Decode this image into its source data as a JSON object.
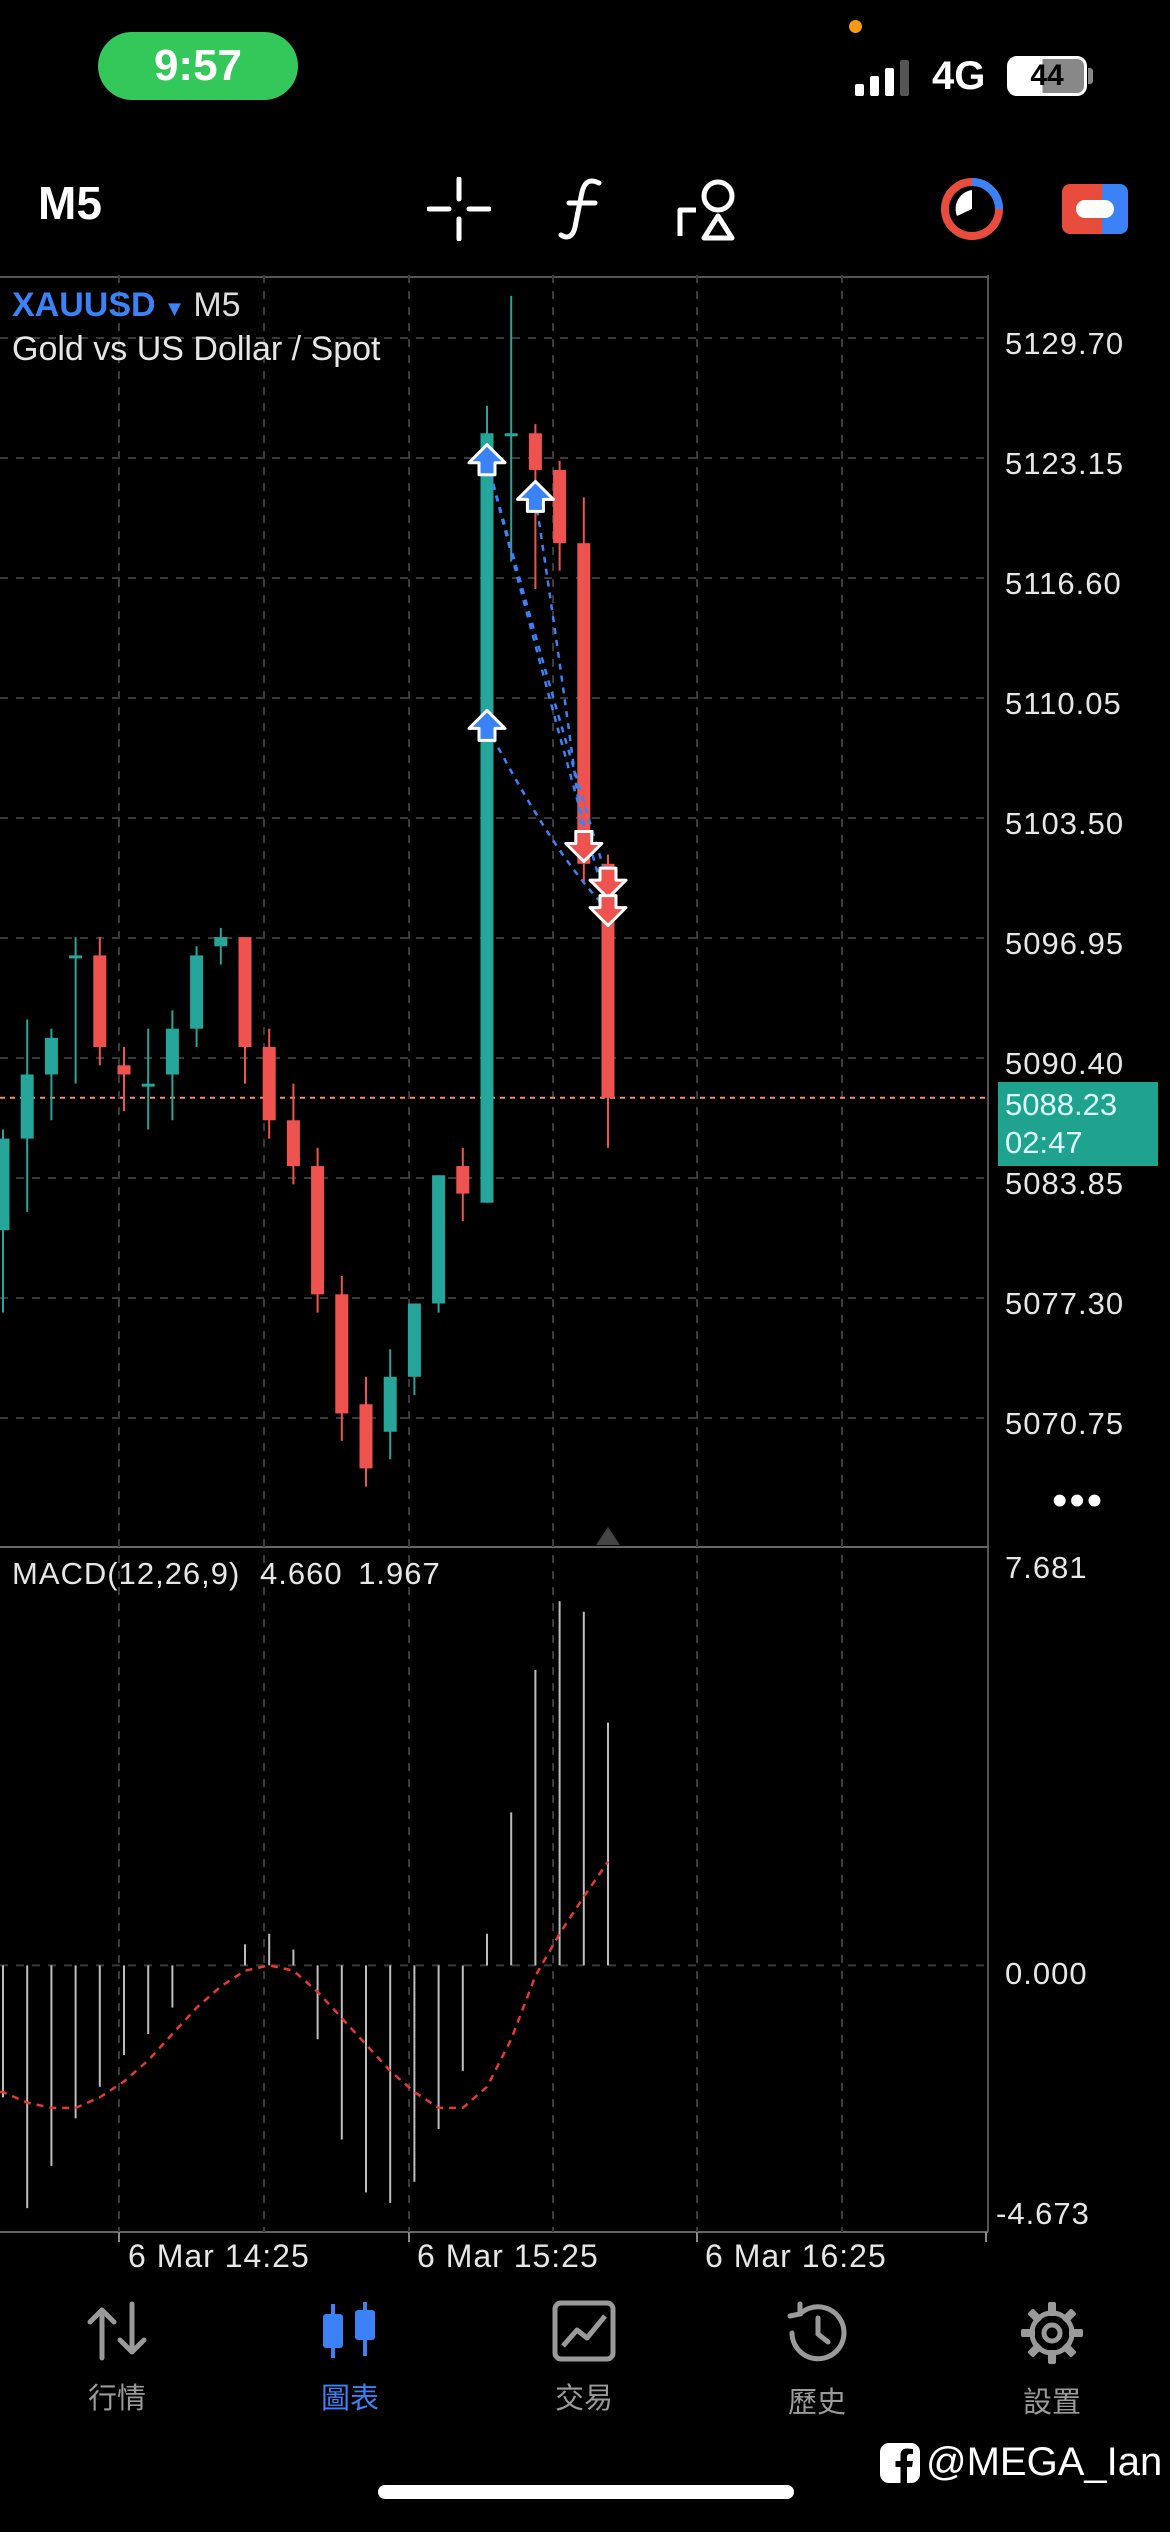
{
  "status_bar": {
    "time": "9:57",
    "network": "4G",
    "battery": "44",
    "icons": [
      "signal-icon",
      "battery-icon"
    ]
  },
  "toolbar": {
    "timeframe": "M5",
    "icons": [
      "crosshair-icon",
      "indicator-f-icon",
      "objects-icon",
      "timer-icon",
      "toggle-icon"
    ],
    "accent_red": "#e74c3c",
    "accent_blue": "#3b82f6"
  },
  "chart": {
    "symbol": "XAUUSD",
    "timeframe": "M5",
    "description": "Gold vs US Dollar / Spot",
    "more_label": "•••",
    "current_price": "5088.23",
    "countdown": "02:47",
    "price_ticks": [
      "5129.70",
      "5123.15",
      "5116.60",
      "5110.05",
      "5103.50",
      "5096.95",
      "5090.40",
      "5083.85",
      "5077.30",
      "5070.75"
    ],
    "date_ticks": [
      "6 Mar 14:25",
      "6 Mar 15:25",
      "6 Mar 16:25"
    ],
    "colors": {
      "up": "#26a69a",
      "down": "#ef5350",
      "grid": "#3a3a3a",
      "price_line": "#f08c6c",
      "trade_line": "#3b82f6",
      "signal_line": "#e53935"
    }
  },
  "macd": {
    "label": "MACD(12,26,9)",
    "value": "4.660",
    "signal": "1.967",
    "ticks": [
      "7.681",
      "0.000",
      "-4.673"
    ]
  },
  "chart_data": {
    "type": "candlestick",
    "symbol": "XAUUSD",
    "interval": "M5",
    "ylim": [
      5065,
      5134
    ],
    "candles": [
      {
        "o": 5081.0,
        "h": 5086.5,
        "l": 5076.5,
        "c": 5086.0
      },
      {
        "o": 5086.0,
        "h": 5092.5,
        "l": 5082.0,
        "c": 5089.5
      },
      {
        "o": 5089.5,
        "h": 5092.0,
        "l": 5087.0,
        "c": 5091.5
      },
      {
        "o": 5096.0,
        "h": 5097.0,
        "l": 5089.0,
        "c": 5096.0
      },
      {
        "o": 5096.0,
        "h": 5097.0,
        "l": 5090.0,
        "c": 5091.0
      },
      {
        "o": 5090.0,
        "h": 5091.0,
        "l": 5087.5,
        "c": 5089.5
      },
      {
        "o": 5089.0,
        "h": 5092.0,
        "l": 5086.5,
        "c": 5089.0
      },
      {
        "o": 5089.5,
        "h": 5093.0,
        "l": 5087.0,
        "c": 5092.0
      },
      {
        "o": 5092.0,
        "h": 5096.5,
        "l": 5091.0,
        "c": 5096.0
      },
      {
        "o": 5096.5,
        "h": 5097.5,
        "l": 5095.5,
        "c": 5097.0
      },
      {
        "o": 5097.0,
        "h": 5097.0,
        "l": 5089.0,
        "c": 5091.0
      },
      {
        "o": 5091.0,
        "h": 5092.0,
        "l": 5086.0,
        "c": 5087.0
      },
      {
        "o": 5087.0,
        "h": 5089.0,
        "l": 5083.5,
        "c": 5084.5
      },
      {
        "o": 5084.5,
        "h": 5085.5,
        "l": 5076.5,
        "c": 5077.5
      },
      {
        "o": 5077.5,
        "h": 5078.5,
        "l": 5069.5,
        "c": 5071.0
      },
      {
        "o": 5071.5,
        "h": 5073.0,
        "l": 5067.0,
        "c": 5068.0
      },
      {
        "o": 5070.0,
        "h": 5074.5,
        "l": 5068.5,
        "c": 5073.0
      },
      {
        "o": 5073.0,
        "h": 5077.0,
        "l": 5072.0,
        "c": 5077.0
      },
      {
        "o": 5077.0,
        "h": 5084.0,
        "l": 5076.5,
        "c": 5084.0
      },
      {
        "o": 5084.5,
        "h": 5085.5,
        "l": 5081.5,
        "c": 5083.0
      },
      {
        "o": 5082.5,
        "h": 5126.0,
        "l": 5082.5,
        "c": 5124.5
      },
      {
        "o": 5124.5,
        "h": 5132.0,
        "l": 5117.5,
        "c": 5124.5
      },
      {
        "o": 5124.5,
        "h": 5125.0,
        "l": 5116.0,
        "c": 5122.5
      },
      {
        "o": 5122.5,
        "h": 5123.0,
        "l": 5117.0,
        "c": 5118.5
      },
      {
        "o": 5118.5,
        "h": 5121.0,
        "l": 5100.0,
        "c": 5101.0
      },
      {
        "o": 5101.0,
        "h": 5101.5,
        "l": 5085.5,
        "c": 5088.23
      }
    ],
    "trades": [
      {
        "type": "buy",
        "price": 5123.0,
        "candle": 20
      },
      {
        "type": "buy",
        "price": 5108.5,
        "candle": 20
      },
      {
        "type": "buy",
        "price": 5121.0,
        "candle": 22
      },
      {
        "type": "sell",
        "price": 5102.0,
        "candle": 24
      },
      {
        "type": "sell",
        "price": 5100.0,
        "candle": 25
      },
      {
        "type": "sell",
        "price": 5098.5,
        "candle": 25
      }
    ],
    "macd_histogram": [
      -2.5,
      -4.6,
      -3.8,
      -2.9,
      -2.3,
      -1.7,
      -1.3,
      -0.8,
      0.0,
      0.0,
      0.4,
      0.6,
      0.3,
      -1.4,
      -3.3,
      -4.3,
      -4.5,
      -4.1,
      -3.1,
      -2.0,
      0.6,
      2.9,
      5.6,
      6.9,
      6.7,
      4.6
    ],
    "macd_signal": [
      -2.4,
      -2.6,
      -2.7,
      -2.7,
      -2.5,
      -2.2,
      -1.8,
      -1.3,
      -0.8,
      -0.4,
      -0.1,
      0.0,
      -0.1,
      -0.5,
      -1.0,
      -1.5,
      -2.0,
      -2.4,
      -2.7,
      -2.7,
      -2.3,
      -1.4,
      -0.2,
      0.6,
      1.3,
      1.967
    ],
    "macd_ylim": [
      -4.673,
      7.681
    ]
  },
  "bottom_nav": [
    {
      "label": "行情",
      "icon": "quotes-icon",
      "active": false
    },
    {
      "label": "圖表",
      "icon": "chart-icon",
      "active": true
    },
    {
      "label": "交易",
      "icon": "trade-icon",
      "active": false
    },
    {
      "label": "歷史",
      "icon": "history-icon",
      "active": false
    },
    {
      "label": "設置",
      "icon": "settings-icon",
      "active": false
    }
  ],
  "watermark": "@MEGA_Ian"
}
